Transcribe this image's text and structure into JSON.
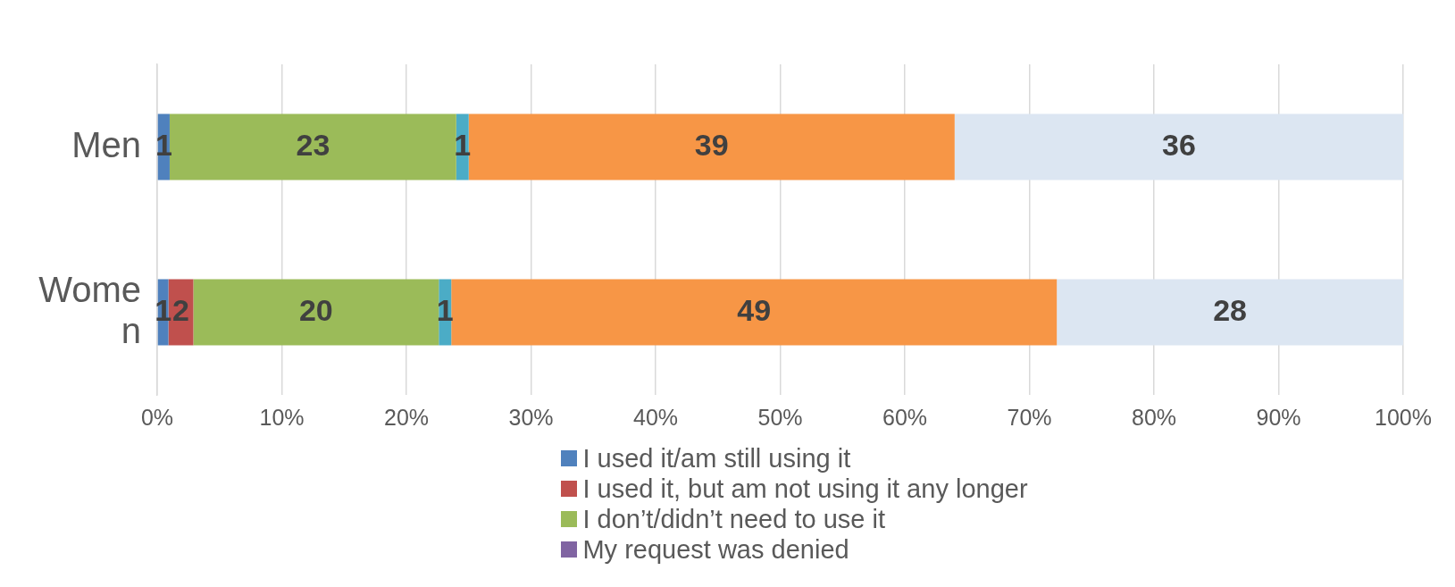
{
  "chart_data": {
    "type": "bar",
    "orientation": "horizontal",
    "stacked": true,
    "categories": [
      "Men",
      "Women"
    ],
    "series": [
      {
        "name": "I used it/am still using it",
        "color": "#4f81bd",
        "values": [
          1.0,
          0.9
        ],
        "value_labels": [
          "1",
          "1"
        ]
      },
      {
        "name": "I used it, but am not using it any longer",
        "color": "#c0504d",
        "values": [
          null,
          2.0
        ],
        "value_labels": [
          null,
          "2"
        ]
      },
      {
        "name": "I don’t/didn’t need to use it",
        "color": "#9bbb59",
        "values": [
          23.0,
          19.7
        ],
        "value_labels": [
          "23",
          "20"
        ]
      },
      {
        "name": "My request was denied",
        "color": "#8064a2",
        "values": [
          null,
          null
        ],
        "value_labels": [
          null,
          null
        ]
      },
      {
        "color": "#4bacc6",
        "values": [
          1.0,
          1.0
        ],
        "value_labels": [
          "1",
          "1"
        ]
      },
      {
        "color": "#f79646",
        "values": [
          39.0,
          48.6
        ],
        "value_labels": [
          "39",
          "49"
        ]
      },
      {
        "color": "#dce6f2",
        "values": [
          36.0,
          27.8
        ],
        "value_labels": [
          "36",
          "28"
        ]
      }
    ],
    "xlim": [
      0,
      100
    ],
    "xticks": [
      {
        "value": 0,
        "label": "0%"
      },
      {
        "value": 10,
        "label": "10%"
      },
      {
        "value": 20,
        "label": "20%"
      },
      {
        "value": 30,
        "label": "30%"
      },
      {
        "value": 40,
        "label": "40%"
      },
      {
        "value": 50,
        "label": "50%"
      },
      {
        "value": 60,
        "label": "60%"
      },
      {
        "value": 70,
        "label": "70%"
      },
      {
        "value": 80,
        "label": "80%"
      },
      {
        "value": 90,
        "label": "90%"
      },
      {
        "value": 100,
        "label": "100%"
      }
    ],
    "grid": "x",
    "legend": "bottom"
  }
}
